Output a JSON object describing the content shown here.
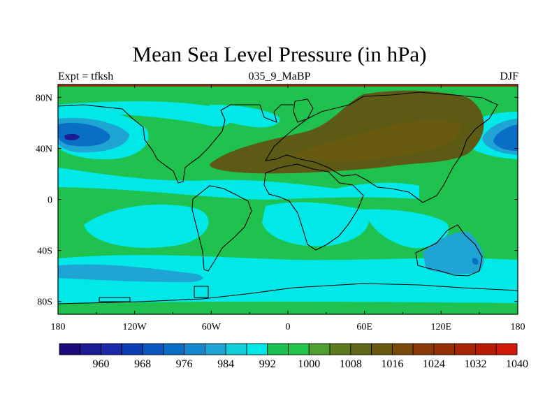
{
  "chart_data": {
    "type": "heatmap",
    "title": "Mean Sea Level Pressure (in hPa)",
    "left_string": "Expt = tfksh",
    "center_string": "035_9_MaBP",
    "right_string": "DJF",
    "x_axis": {
      "range": [
        -180,
        180
      ],
      "ticks": [
        {
          "value": -180,
          "label": "180"
        },
        {
          "value": -120,
          "label": "120W"
        },
        {
          "value": -60,
          "label": "60W"
        },
        {
          "value": 0,
          "label": "0"
        },
        {
          "value": 60,
          "label": "60E"
        },
        {
          "value": 120,
          "label": "120E"
        },
        {
          "value": 180,
          "label": "180"
        }
      ]
    },
    "y_axis": {
      "range": [
        -90,
        90
      ],
      "ticks": [
        {
          "value": 80,
          "label": "80N"
        },
        {
          "value": 40,
          "label": "40N"
        },
        {
          "value": 0,
          "label": "0"
        },
        {
          "value": -40,
          "label": "40S"
        },
        {
          "value": -80,
          "label": "80S"
        }
      ]
    },
    "colorbar": {
      "labels": [
        "960",
        "968",
        "976",
        "984",
        "992",
        "1000",
        "1008",
        "1016",
        "1024",
        "1032",
        "1040"
      ],
      "label_box_indices": [
        1,
        3,
        5,
        7,
        9,
        11,
        13,
        15,
        17,
        19,
        21
      ],
      "colors": [
        "#1a0a7a",
        "#1c1c94",
        "#1a2aa8",
        "#0a3cb4",
        "#0a55bf",
        "#0b6ec6",
        "#1587cc",
        "#1fa5d4",
        "#10cfd8",
        "#00e8e8",
        "#1ac050",
        "#22c44a",
        "#4fa030",
        "#5c7a1c",
        "#5e6818",
        "#6a5a10",
        "#7a4a0a",
        "#8a3a08",
        "#963006",
        "#a82606",
        "#b81c06",
        "#d01a0a"
      ]
    },
    "fields": [
      {
        "name": "background",
        "color": "#1fc24e"
      },
      {
        "name": "southern-ocean-belt",
        "lon_range": [
          -180,
          180
        ],
        "lat_range": [
          -75,
          -40
        ],
        "color": "#00e8e8"
      },
      {
        "name": "south-pacific-high",
        "center": [
          -120,
          -25
        ],
        "color": "#00e8e8"
      },
      {
        "name": "south-atlantic-high",
        "center": [
          -10,
          -25
        ],
        "color": "#00e8e8"
      },
      {
        "name": "indian-ocean-low",
        "center": [
          85,
          -20
        ],
        "color": "#00e8e8"
      },
      {
        "name": "aleutian-low",
        "center": [
          -160,
          50
        ],
        "color": "#0b6ec6"
      },
      {
        "name": "east-pacific-low",
        "center": [
          170,
          48
        ],
        "color": "#0b6ec6"
      },
      {
        "name": "eurasian-high",
        "center": [
          70,
          60
        ],
        "color": "#5c5a14"
      },
      {
        "name": "australia-low",
        "center": [
          135,
          -40
        ],
        "color": "#1fa5d4"
      }
    ],
    "levels_hPa": [
      960,
      968,
      976,
      984,
      992,
      1000,
      1008,
      1016,
      1024,
      1032,
      1040
    ]
  }
}
